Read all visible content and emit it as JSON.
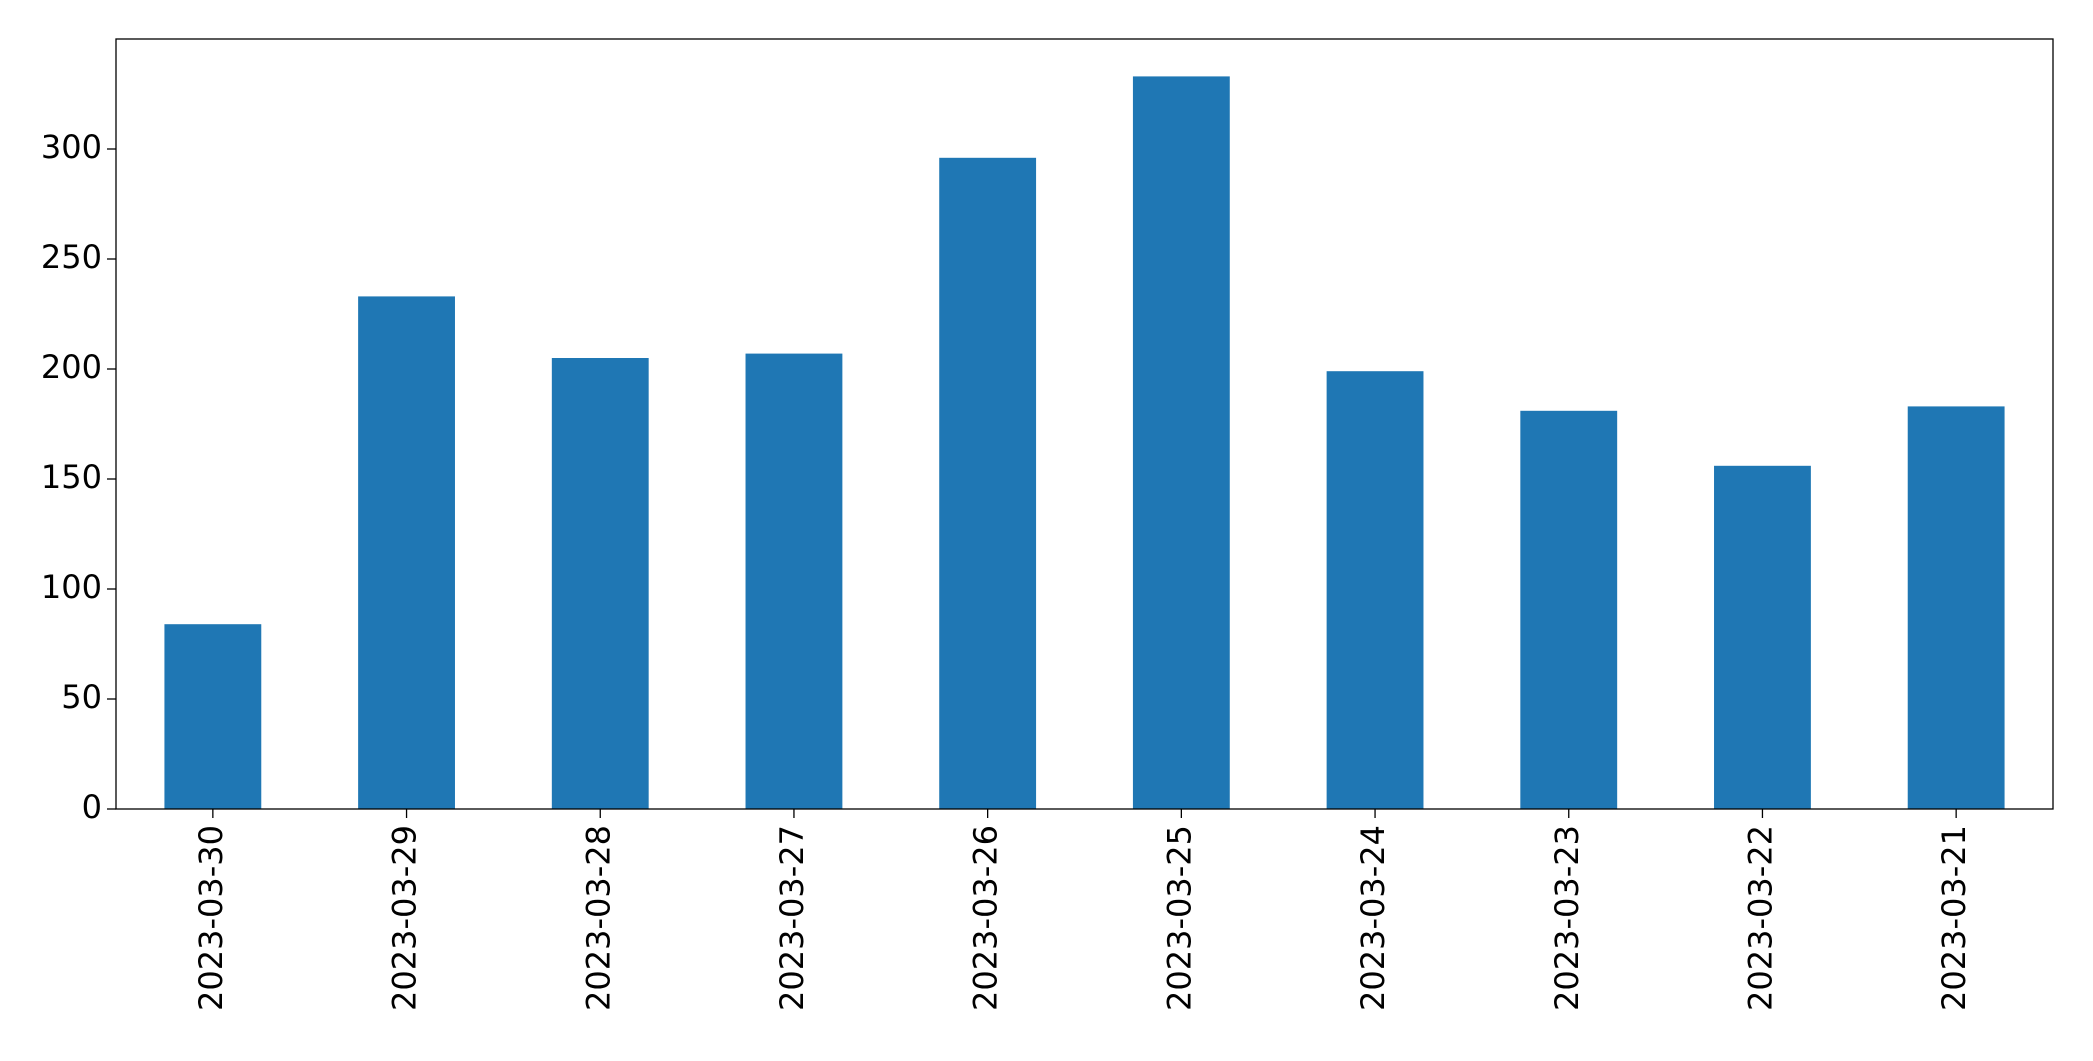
{
  "chart_data": {
    "type": "bar",
    "categories": [
      "2023-03-30",
      "2023-03-29",
      "2023-03-28",
      "2023-03-27",
      "2023-03-26",
      "2023-03-25",
      "2023-03-24",
      "2023-03-23",
      "2023-03-22",
      "2023-03-21"
    ],
    "values": [
      84,
      233,
      205,
      207,
      296,
      333,
      199,
      181,
      156,
      183
    ],
    "color": "#1f77b4",
    "ylim": [
      0,
      350
    ],
    "yticks": [
      0,
      50,
      100,
      150,
      200,
      250,
      300
    ],
    "grid": false
  }
}
